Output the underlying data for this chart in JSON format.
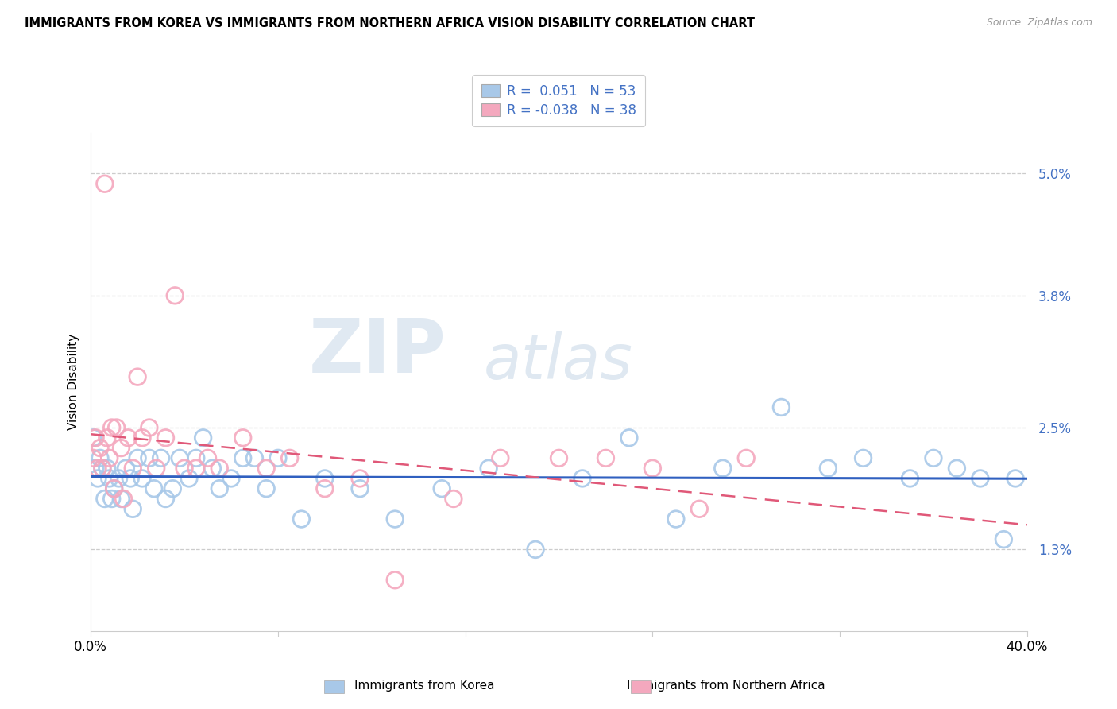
{
  "title": "IMMIGRANTS FROM KOREA VS IMMIGRANTS FROM NORTHERN AFRICA VISION DISABILITY CORRELATION CHART",
  "source": "Source: ZipAtlas.com",
  "ylabel": "Vision Disability",
  "yticks": [
    0.013,
    0.025,
    0.038,
    0.05
  ],
  "ytick_labels": [
    "1.3%",
    "2.5%",
    "3.8%",
    "5.0%"
  ],
  "xlim": [
    0.0,
    0.4
  ],
  "ylim": [
    0.005,
    0.054
  ],
  "legend_korea_R": "0.051",
  "legend_korea_N": "53",
  "legend_africa_R": "-0.038",
  "legend_africa_N": "38",
  "korea_color": "#a8c8e8",
  "africa_color": "#f4a8be",
  "korea_line_color": "#3060c0",
  "africa_line_color": "#e05878",
  "watermark_zip": "ZIP",
  "watermark_atlas": "atlas",
  "korea_x": [
    0.001,
    0.002,
    0.003,
    0.004,
    0.005,
    0.006,
    0.007,
    0.008,
    0.009,
    0.01,
    0.012,
    0.013,
    0.015,
    0.017,
    0.018,
    0.02,
    0.022,
    0.025,
    0.027,
    0.03,
    0.032,
    0.035,
    0.038,
    0.042,
    0.045,
    0.048,
    0.052,
    0.055,
    0.06,
    0.065,
    0.07,
    0.075,
    0.08,
    0.09,
    0.1,
    0.115,
    0.13,
    0.15,
    0.17,
    0.19,
    0.21,
    0.23,
    0.25,
    0.27,
    0.295,
    0.315,
    0.33,
    0.35,
    0.36,
    0.37,
    0.38,
    0.39,
    0.395
  ],
  "korea_y": [
    0.024,
    0.021,
    0.02,
    0.022,
    0.021,
    0.018,
    0.021,
    0.02,
    0.018,
    0.019,
    0.02,
    0.018,
    0.021,
    0.02,
    0.017,
    0.022,
    0.02,
    0.022,
    0.019,
    0.022,
    0.018,
    0.019,
    0.022,
    0.02,
    0.022,
    0.024,
    0.021,
    0.019,
    0.02,
    0.022,
    0.022,
    0.019,
    0.022,
    0.016,
    0.02,
    0.019,
    0.016,
    0.019,
    0.021,
    0.013,
    0.02,
    0.024,
    0.016,
    0.021,
    0.027,
    0.021,
    0.022,
    0.02,
    0.022,
    0.021,
    0.02,
    0.014,
    0.02
  ],
  "africa_x": [
    0.001,
    0.002,
    0.003,
    0.004,
    0.005,
    0.006,
    0.007,
    0.008,
    0.009,
    0.01,
    0.011,
    0.013,
    0.014,
    0.016,
    0.018,
    0.02,
    0.022,
    0.025,
    0.028,
    0.032,
    0.036,
    0.04,
    0.045,
    0.05,
    0.055,
    0.065,
    0.075,
    0.085,
    0.1,
    0.115,
    0.13,
    0.155,
    0.175,
    0.2,
    0.22,
    0.24,
    0.26,
    0.28
  ],
  "africa_y": [
    0.022,
    0.024,
    0.021,
    0.023,
    0.021,
    0.049,
    0.024,
    0.022,
    0.025,
    0.019,
    0.025,
    0.023,
    0.018,
    0.024,
    0.021,
    0.03,
    0.024,
    0.025,
    0.021,
    0.024,
    0.038,
    0.021,
    0.021,
    0.022,
    0.021,
    0.024,
    0.021,
    0.022,
    0.019,
    0.02,
    0.01,
    0.018,
    0.022,
    0.022,
    0.022,
    0.021,
    0.017,
    0.022
  ]
}
